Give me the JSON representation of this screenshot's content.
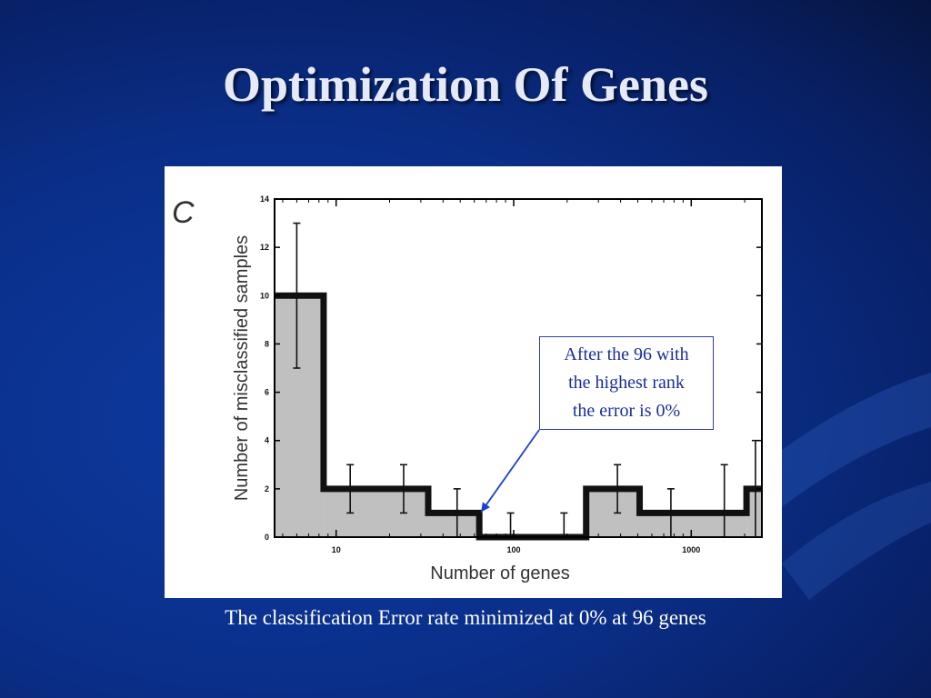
{
  "slide": {
    "title": "Optimization Of Genes",
    "caption": "The classification Error rate minimized at 0% at 96 genes"
  },
  "figure": {
    "panel_letter": "C",
    "callout_lines": [
      "After the 96 with",
      "the highest rank",
      "the error is 0%"
    ]
  },
  "colors": {
    "background": "#0a2f8a",
    "title": "#e6e9f7",
    "fill": "#c0c0c0",
    "outline": "#111111",
    "callout_text": "#1a2e9a",
    "arrow": "#1f3fd0"
  },
  "chart_data": {
    "type": "bar",
    "xscale": "log",
    "xlabel": "Number of genes",
    "ylabel": "Number of misclassified samples",
    "xlim": [
      4.5,
      2500
    ],
    "ylim": [
      0,
      14
    ],
    "x_ticks": [
      {
        "value": 10,
        "label": "10"
      },
      {
        "value": 100,
        "label": "100"
      },
      {
        "value": 1000,
        "label": "1000"
      }
    ],
    "y_ticks": [
      0,
      2,
      4,
      6,
      8,
      10,
      12,
      14
    ],
    "bins": [
      {
        "start": 4.5,
        "end": 8.5,
        "value": 10
      },
      {
        "start": 8.5,
        "end": 33,
        "value": 2
      },
      {
        "start": 33,
        "end": 64,
        "value": 1
      },
      {
        "start": 64,
        "end": 256,
        "value": 0
      },
      {
        "start": 256,
        "end": 512,
        "value": 2
      },
      {
        "start": 512,
        "end": 2048,
        "value": 1
      },
      {
        "start": 2048,
        "end": 2500,
        "value": 2
      }
    ],
    "error_bars": [
      {
        "x": 6,
        "low": 7,
        "high": 13
      },
      {
        "x": 12,
        "low": 1,
        "high": 3
      },
      {
        "x": 24,
        "low": 1,
        "high": 3
      },
      {
        "x": 48,
        "low": 0,
        "high": 2
      },
      {
        "x": 96,
        "low": 0,
        "high": 1
      },
      {
        "x": 192,
        "low": 0,
        "high": 1
      },
      {
        "x": 384,
        "low": 1,
        "high": 3
      },
      {
        "x": 768,
        "low": 0,
        "high": 2
      },
      {
        "x": 1536,
        "low": 0,
        "high": 3
      },
      {
        "x": 2300,
        "low": 0,
        "high": 4
      }
    ],
    "annotation": {
      "x": 64,
      "y": 1,
      "lines": [
        "After the 96 with",
        "the highest rank",
        "the error is 0%"
      ]
    }
  }
}
